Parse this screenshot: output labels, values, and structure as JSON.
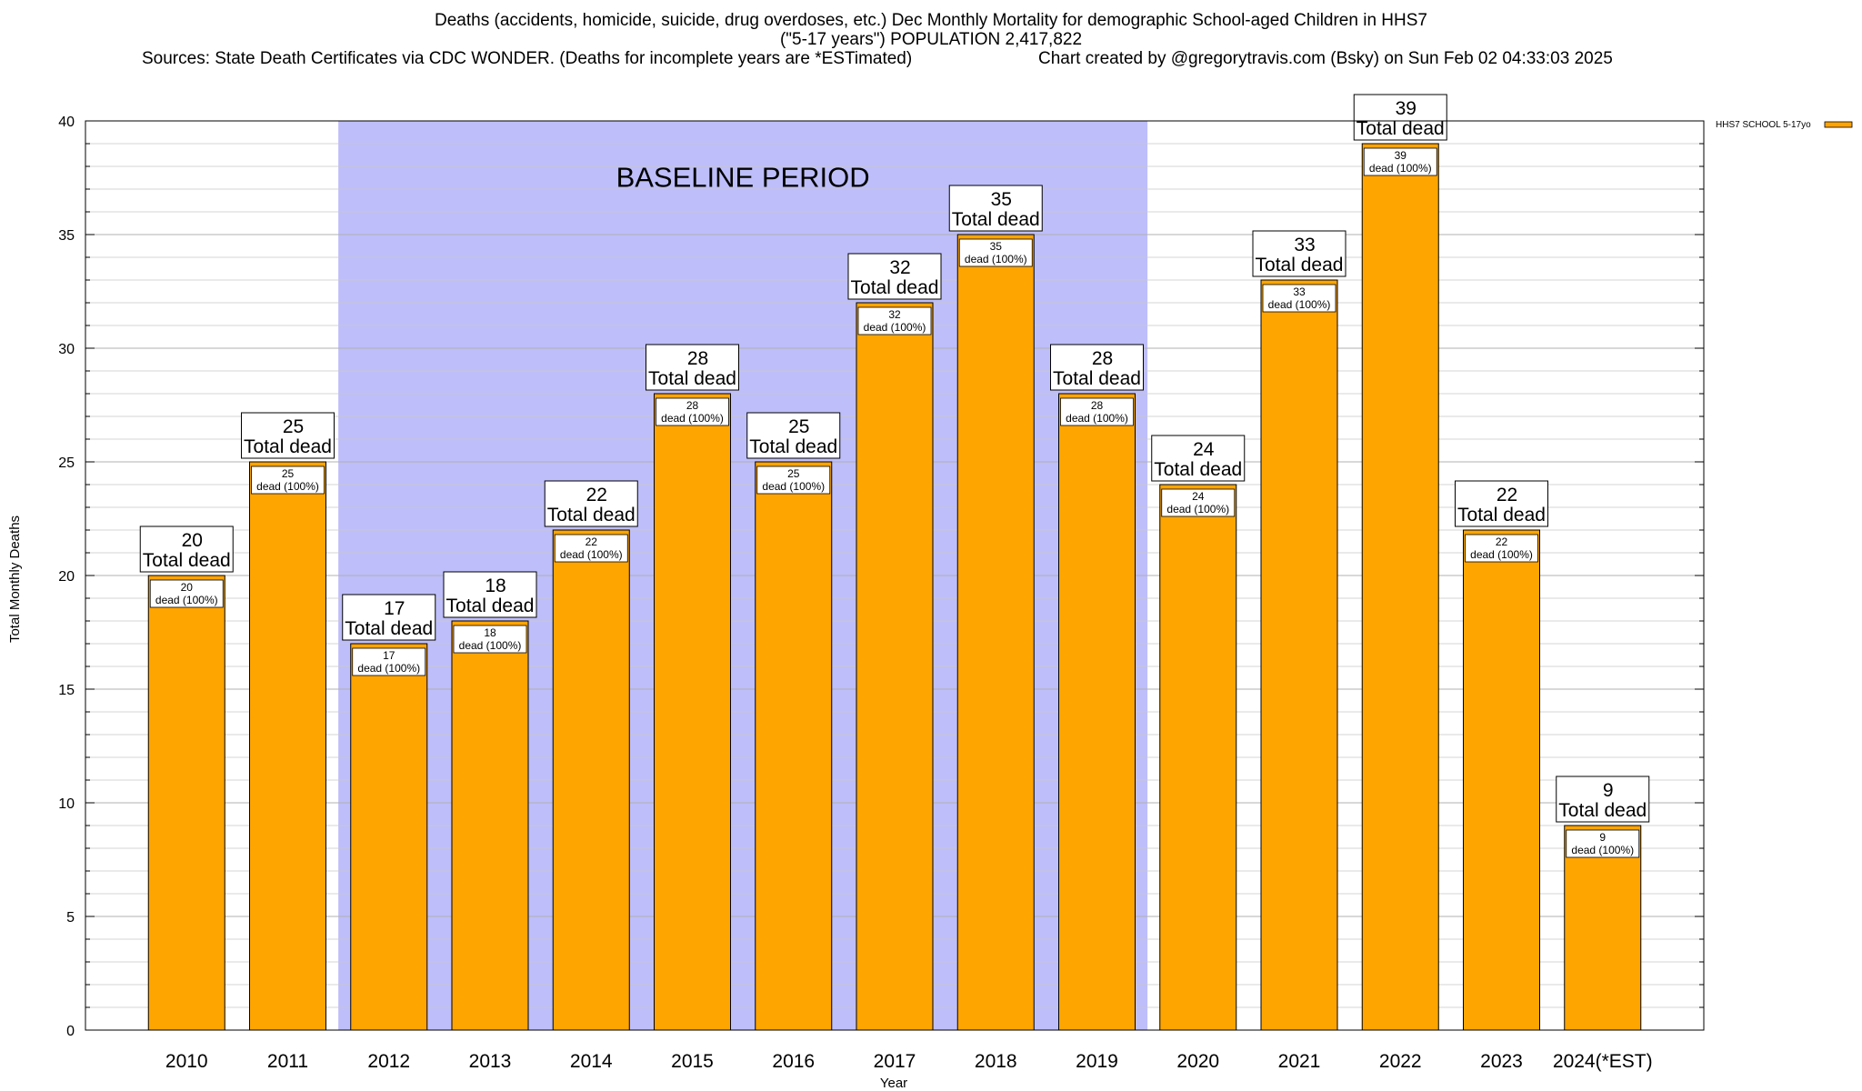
{
  "title": {
    "line1": "Deaths (accidents, homicide, suicide, drug overdoses, etc.) Dec Monthly Mortality for demographic School-aged Children in HHS7",
    "line2": "(\"5-17 years\") POPULATION 2,417,822",
    "sources": "Sources: State Death Certificates via CDC WONDER. (Deaths for incomplete years are *ESTimated)",
    "credit": "Chart created by @gregorytravis.com (Bsky) on Sun Feb 02 04:33:03 2025"
  },
  "chart_data": {
    "type": "bar",
    "categories": [
      "2010",
      "2011",
      "2012",
      "2013",
      "2014",
      "2015",
      "2016",
      "2017",
      "2018",
      "2019",
      "2020",
      "2021",
      "2022",
      "2023",
      "2024(*EST)"
    ],
    "series": [
      {
        "name": "HHS7 SCHOOL 5-17yo",
        "values": [
          20,
          25,
          17,
          18,
          22,
          28,
          25,
          32,
          35,
          28,
          24,
          33,
          39,
          22,
          9
        ]
      }
    ],
    "xlabel": "Year",
    "ylabel": "Total Monthly Deaths",
    "ylim": [
      0,
      40
    ],
    "yticks": [
      0,
      5,
      10,
      15,
      20,
      25,
      30,
      35,
      40
    ],
    "grid": true,
    "legend": "top-right",
    "bar_total_label": "Total dead",
    "bar_inner_label": "dead (100%)",
    "annotation": {
      "text": "BASELINE PERIOD",
      "from": "2012",
      "to": "2019"
    },
    "colors": {
      "bar": "#ffa500",
      "baseline_shade": "#bebefa",
      "grid": "#a0a0a0"
    }
  }
}
